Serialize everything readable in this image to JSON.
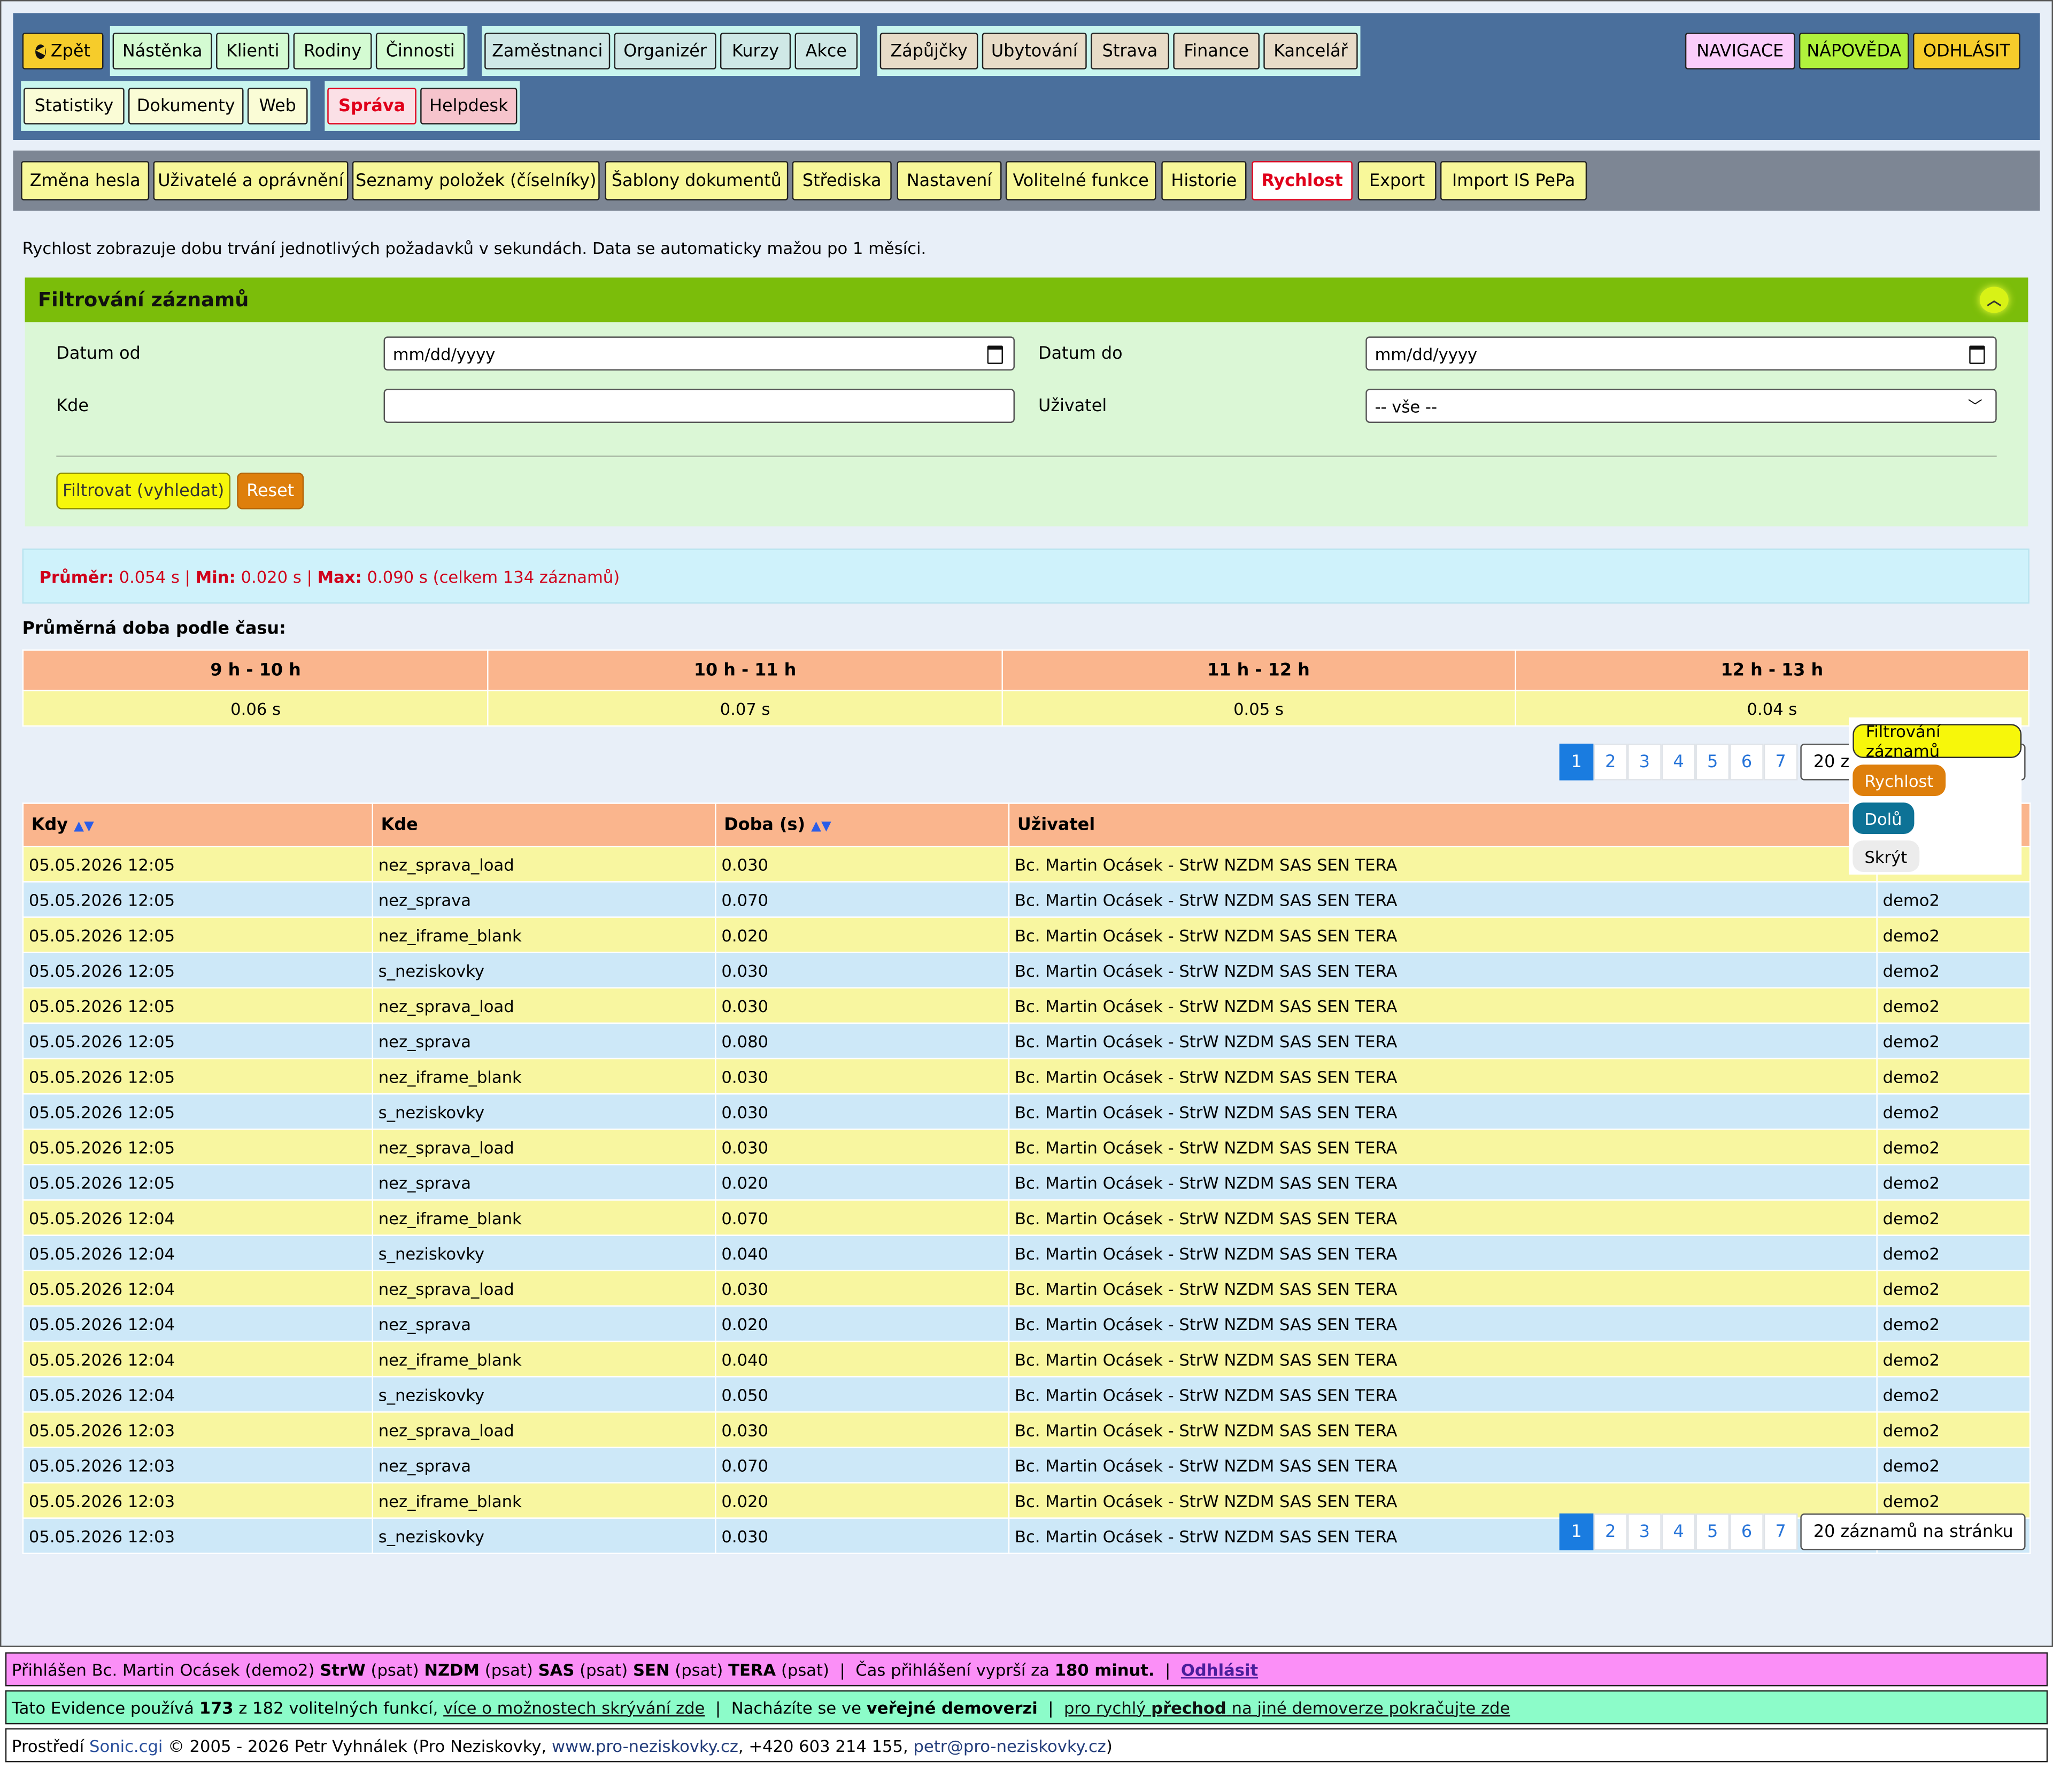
{
  "nav": {
    "back": "Zpět",
    "group1": [
      "Nástěnka",
      "Klienti",
      "Rodiny",
      "Činnosti"
    ],
    "group2": [
      "Zaměstnanci",
      "Organizér",
      "Kurzy",
      "Akce"
    ],
    "group3": [
      "Zápůjčky",
      "Ubytování",
      "Strava",
      "Finance",
      "Kancelář"
    ],
    "right": [
      "NAVIGACE",
      "NÁPOVĚDA",
      "ODHLÁSIT"
    ],
    "row2a": [
      "Statistiky",
      "Dokumenty",
      "Web"
    ],
    "row2b": [
      "Správa",
      "Helpdesk"
    ]
  },
  "subnav": [
    "Změna hesla",
    "Uživatelé a oprávnění",
    "Seznamy položek (číselníky)",
    "Šablony dokumentů",
    "Střediska",
    "Nastavení",
    "Volitelné funkce",
    "Historie",
    "Rychlost",
    "Export",
    "Import IS PePa"
  ],
  "intro": "Rychlost zobrazuje dobu trvání jednotlivých požadavků v sekundách. Data se automaticky mažou po 1 měsíci.",
  "filter": {
    "title": "Filtrování záznamů",
    "date_from_label": "Datum od",
    "date_to_label": "Datum do",
    "date_placeholder": "mm/dd/yyyy",
    "where_label": "Kde",
    "user_label": "Uživatel",
    "user_value": "-- vše --",
    "submit": "Filtrovat (vyhledat)",
    "reset": "Reset"
  },
  "stats": {
    "avg_label": "Průměr:",
    "avg": "0.054 s",
    "min_label": "Min:",
    "min": "0.020 s",
    "max_label": "Max:",
    "max": "0.090 s",
    "total": "(celkem 134 záznamů)"
  },
  "hours": {
    "title": "Průměrná doba podle času:",
    "headers": [
      "9 h - 10 h",
      "10 h - 11 h",
      "11 h - 12 h",
      "12 h - 13 h"
    ],
    "values": [
      "0.06 s",
      "0.07 s",
      "0.05 s",
      "0.04 s"
    ]
  },
  "pager": {
    "pages": [
      "1",
      "2",
      "3",
      "4",
      "5",
      "6",
      "7"
    ],
    "active": "1",
    "per_page": "20 záznamů na stránku",
    "per_page_top": "20 zá"
  },
  "table": {
    "headers": [
      "Kdy",
      "Kde",
      "Doba (s)",
      "Uživatel",
      ""
    ],
    "rows": [
      [
        "05.05.2026 12:05",
        "nez_sprava_load",
        "0.030",
        "Bc. Martin Ocásek - StrW NZDM SAS SEN TERA",
        "demo2"
      ],
      [
        "05.05.2026 12:05",
        "nez_sprava",
        "0.070",
        "Bc. Martin Ocásek - StrW NZDM SAS SEN TERA",
        "demo2"
      ],
      [
        "05.05.2026 12:05",
        "nez_iframe_blank",
        "0.020",
        "Bc. Martin Ocásek - StrW NZDM SAS SEN TERA",
        "demo2"
      ],
      [
        "05.05.2026 12:05",
        "s_neziskovky",
        "0.030",
        "Bc. Martin Ocásek - StrW NZDM SAS SEN TERA",
        "demo2"
      ],
      [
        "05.05.2026 12:05",
        "nez_sprava_load",
        "0.030",
        "Bc. Martin Ocásek - StrW NZDM SAS SEN TERA",
        "demo2"
      ],
      [
        "05.05.2026 12:05",
        "nez_sprava",
        "0.080",
        "Bc. Martin Ocásek - StrW NZDM SAS SEN TERA",
        "demo2"
      ],
      [
        "05.05.2026 12:05",
        "nez_iframe_blank",
        "0.030",
        "Bc. Martin Ocásek - StrW NZDM SAS SEN TERA",
        "demo2"
      ],
      [
        "05.05.2026 12:05",
        "s_neziskovky",
        "0.030",
        "Bc. Martin Ocásek - StrW NZDM SAS SEN TERA",
        "demo2"
      ],
      [
        "05.05.2026 12:05",
        "nez_sprava_load",
        "0.030",
        "Bc. Martin Ocásek - StrW NZDM SAS SEN TERA",
        "demo2"
      ],
      [
        "05.05.2026 12:05",
        "nez_sprava",
        "0.020",
        "Bc. Martin Ocásek - StrW NZDM SAS SEN TERA",
        "demo2"
      ],
      [
        "05.05.2026 12:04",
        "nez_iframe_blank",
        "0.070",
        "Bc. Martin Ocásek - StrW NZDM SAS SEN TERA",
        "demo2"
      ],
      [
        "05.05.2026 12:04",
        "s_neziskovky",
        "0.040",
        "Bc. Martin Ocásek - StrW NZDM SAS SEN TERA",
        "demo2"
      ],
      [
        "05.05.2026 12:04",
        "nez_sprava_load",
        "0.030",
        "Bc. Martin Ocásek - StrW NZDM SAS SEN TERA",
        "demo2"
      ],
      [
        "05.05.2026 12:04",
        "nez_sprava",
        "0.020",
        "Bc. Martin Ocásek - StrW NZDM SAS SEN TERA",
        "demo2"
      ],
      [
        "05.05.2026 12:04",
        "nez_iframe_blank",
        "0.040",
        "Bc. Martin Ocásek - StrW NZDM SAS SEN TERA",
        "demo2"
      ],
      [
        "05.05.2026 12:04",
        "s_neziskovky",
        "0.050",
        "Bc. Martin Ocásek - StrW NZDM SAS SEN TERA",
        "demo2"
      ],
      [
        "05.05.2026 12:03",
        "nez_sprava_load",
        "0.030",
        "Bc. Martin Ocásek - StrW NZDM SAS SEN TERA",
        "demo2"
      ],
      [
        "05.05.2026 12:03",
        "nez_sprava",
        "0.070",
        "Bc. Martin Ocásek - StrW NZDM SAS SEN TERA",
        "demo2"
      ],
      [
        "05.05.2026 12:03",
        "nez_iframe_blank",
        "0.020",
        "Bc. Martin Ocásek - StrW NZDM SAS SEN TERA",
        "demo2"
      ],
      [
        "05.05.2026 12:03",
        "s_neziskovky",
        "0.030",
        "Bc. Martin Ocásek - StrW NZDM SAS SEN TERA",
        "demo2"
      ]
    ]
  },
  "float_menu": [
    "Filtrování záznamů",
    "Rychlost",
    "Dolů",
    "Skrýt"
  ],
  "footer": {
    "line1_a": "Přihlášen Bc. Martin Ocásek (demo2)",
    "r1": "StrW",
    "p": "(psat)",
    "r2": "NZDM",
    "r3": "SAS",
    "r4": "SEN",
    "r5": "TERA",
    "sep": "|",
    "expire_a": "Čas přihlášení vyprší za",
    "expire_b": "180 minut.",
    "logout": "Odhlásit",
    "line2_a": "Tato Evidence používá",
    "line2_b": "173",
    "line2_c": "z 182 volitelných funkcí,",
    "line2_link": "více o možnostech skrývání zde",
    "line2_d": "Nacházíte se ve",
    "line2_e": "veřejné demoverzi",
    "line2_link2a": "pro rychlý",
    "line2_link2b": "přechod",
    "line2_link2c": "na jiné demoverze pokračujte zde",
    "line3_a": "Prostředí",
    "line3_sonic": "Sonic.cgi",
    "line3_b": "© 2005 - 2026 Petr Vyhnálek (Pro Neziskovky,",
    "line3_web": "www.pro-neziskovky.cz",
    "line3_c": ", +420 603 214 155,",
    "line3_mail": "petr@pro-neziskovky.cz",
    "line3_d": ")"
  },
  "colors": {
    "nav_bg": "#4a6f9c",
    "sub_bg": "#7d8694",
    "filter_head": "#7bbd0a",
    "filter_bg": "#dbf7d6",
    "stats_text": "#d0021b",
    "footer1": "#fb8ff7",
    "footer2": "#8cfcc9"
  }
}
